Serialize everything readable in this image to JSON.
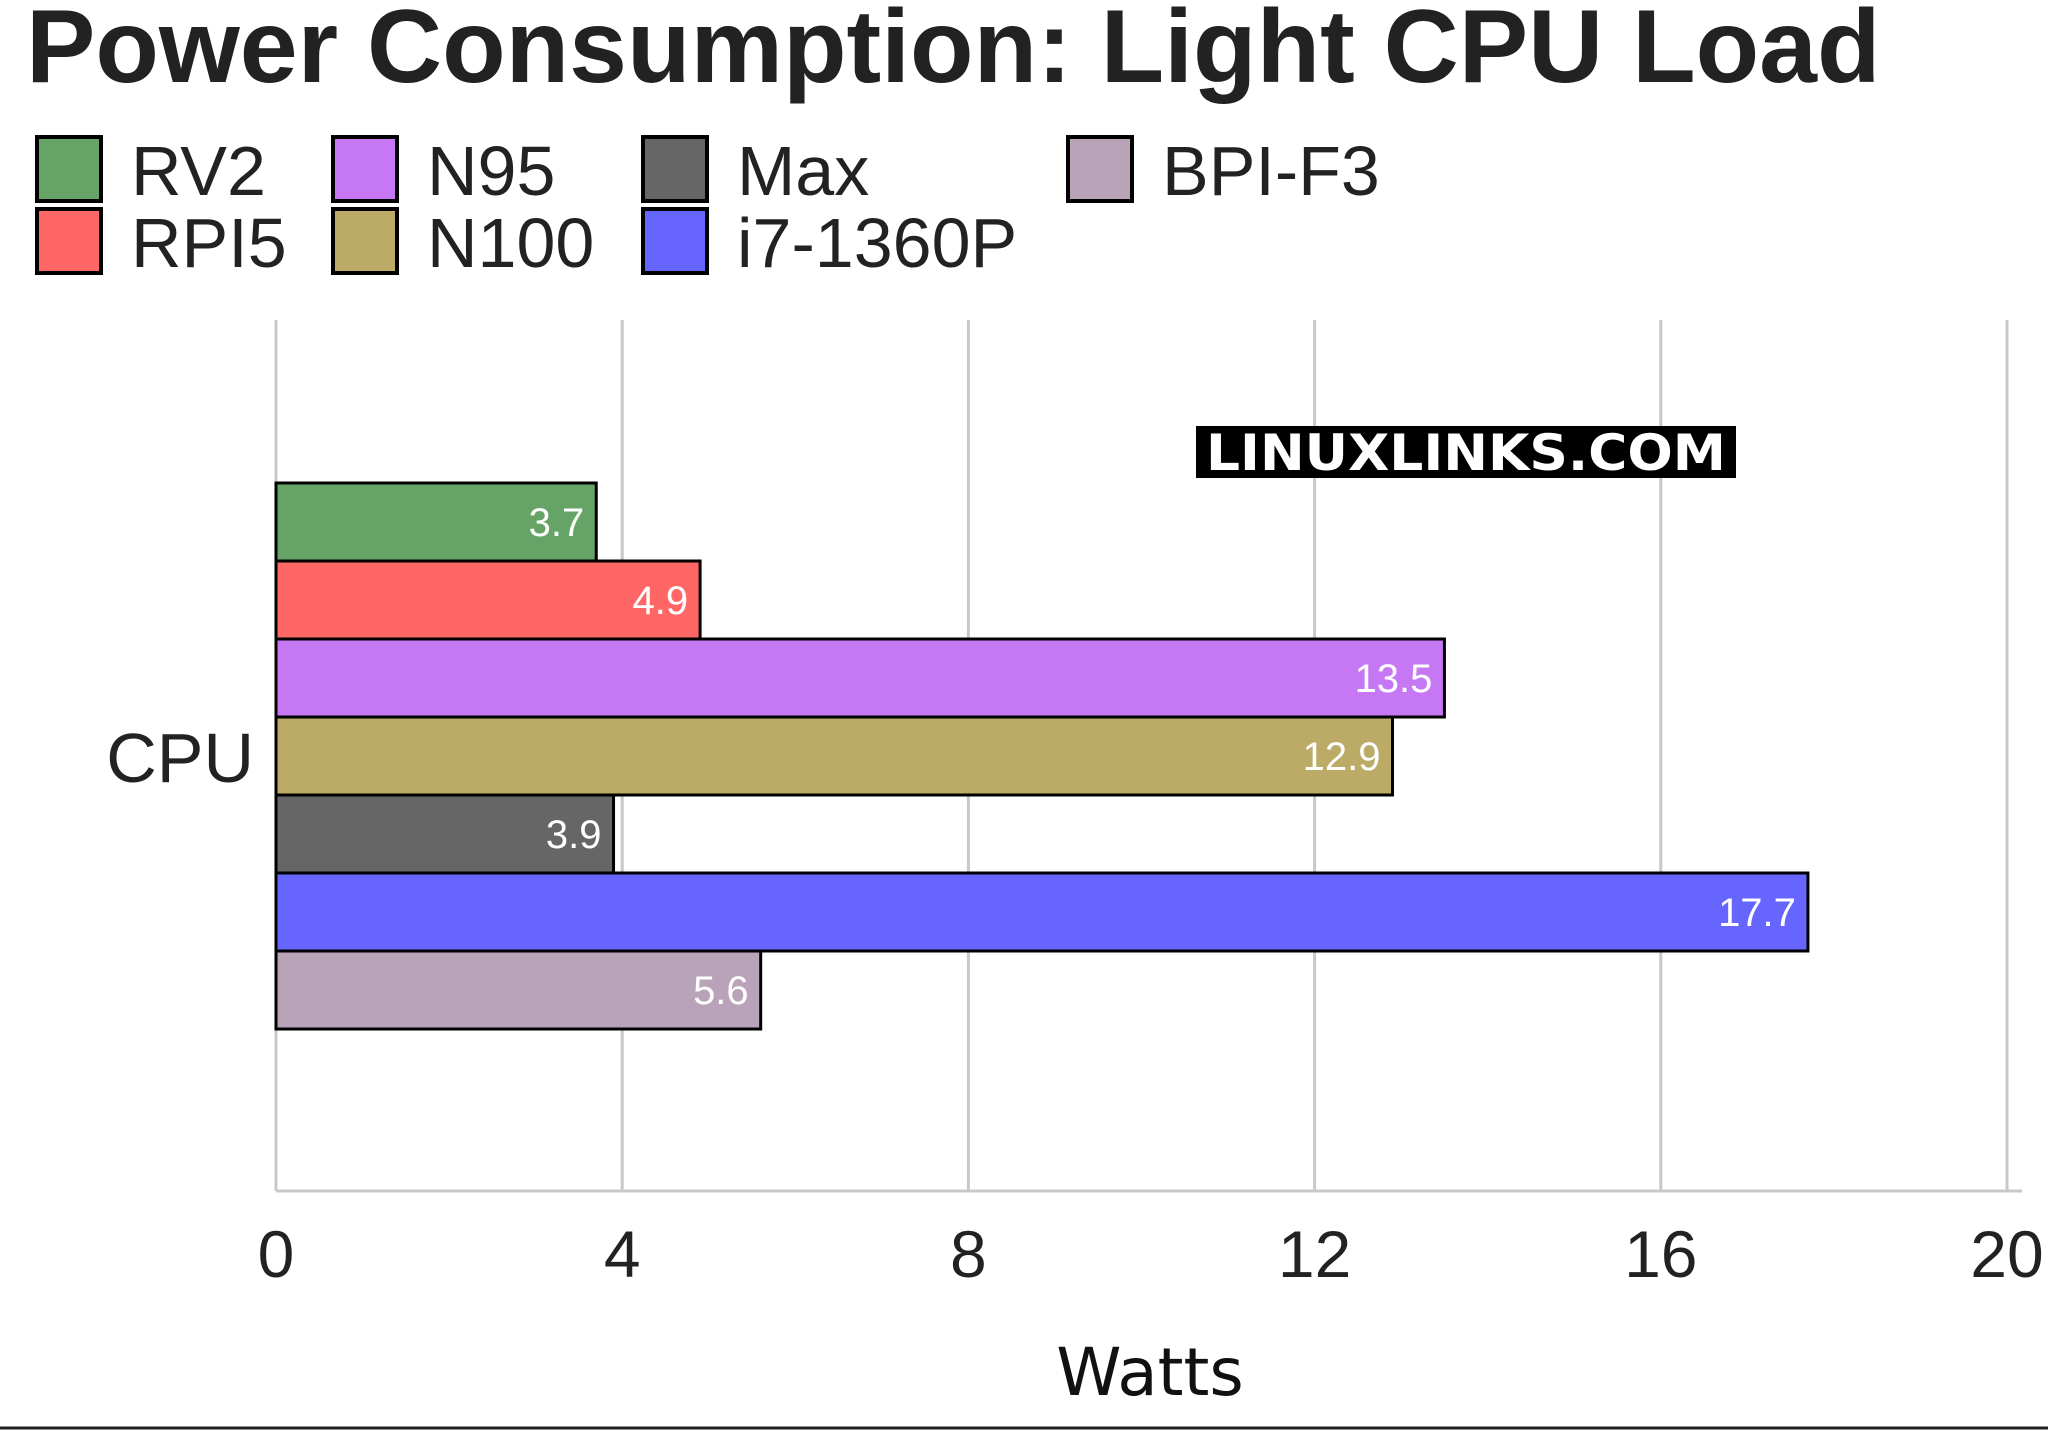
{
  "chart_data": {
    "type": "bar",
    "orientation": "horizontal",
    "title": "Power Consumption: Light CPU Load",
    "xlabel": "Watts",
    "ylabel": "",
    "categories": [
      "CPU"
    ],
    "xlim": [
      0,
      20
    ],
    "xticks": [
      0,
      4,
      8,
      12,
      16,
      20
    ],
    "grid": true,
    "legend_position": "top-left",
    "series": [
      {
        "name": "RV2",
        "values": [
          3.7
        ],
        "color": "#65a466"
      },
      {
        "name": "RPI5",
        "values": [
          4.9
        ],
        "color": "#ff6666"
      },
      {
        "name": "N95",
        "values": [
          13.5
        ],
        "color": "#c678f4"
      },
      {
        "name": "N100",
        "values": [
          12.9
        ],
        "color": "#bbab66"
      },
      {
        "name": "Max",
        "values": [
          3.9
        ],
        "color": "#666666"
      },
      {
        "name": "i7-1360P",
        "values": [
          17.7
        ],
        "color": "#6666ff"
      },
      {
        "name": "BPI-F3",
        "values": [
          5.6
        ],
        "color": "#b9a3b9"
      }
    ],
    "value_labels": [
      "3.7",
      "4.9",
      "13.5",
      "12.9",
      "3.9",
      "17.7",
      "5.6"
    ],
    "tick_labels": [
      "0",
      "4",
      "8",
      "12",
      "16",
      "20"
    ]
  },
  "watermark": "LINUXLINKS.COM"
}
